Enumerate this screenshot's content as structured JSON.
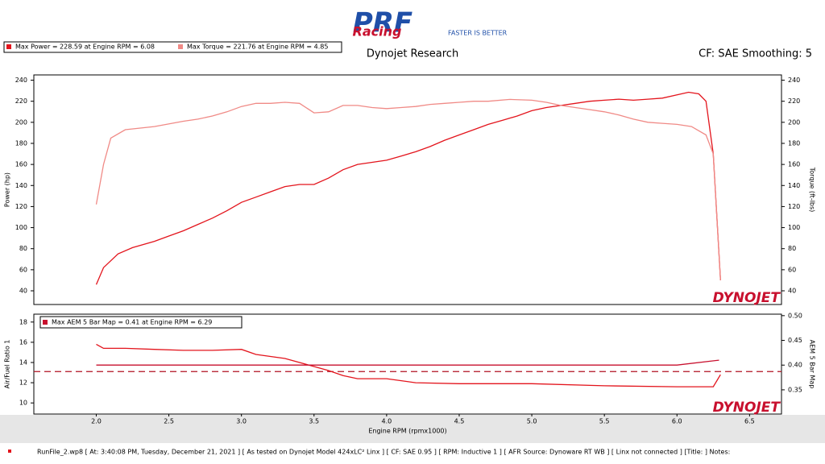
{
  "header": {
    "logo": "PRF",
    "logo_script": "Racing",
    "tagline": "FASTER IS BETTER",
    "title": "Dynojet Research",
    "settings": "CF: SAE Smoothing: 5"
  },
  "watermark": "DYNOJET",
  "footer": "RunFile_2.wp8  [ At: 3:40:08 PM, Tuesday, December 21, 2021 ]  [ As tested on Dynojet Model 424xLC² Linx ]  [ CF: SAE 0.95 ]  [ RPM: Inductive 1 ]  [ AFR Source: Dynoware RT WB ]  [ Linx not connected ]  [Title: ]   Notes:",
  "chart_data": [
    {
      "type": "line",
      "ylabel": "Power (hp)",
      "y2label": "Torque (ft-lbs)",
      "xlim": [
        1.57,
        6.72
      ],
      "ylim": [
        27,
        245
      ],
      "yticks": [
        40,
        60,
        80,
        100,
        120,
        140,
        160,
        180,
        200,
        220,
        240
      ],
      "y2lim": [
        27,
        245
      ],
      "y2ticks": [
        40,
        60,
        80,
        100,
        120,
        140,
        160,
        180,
        200,
        220,
        240
      ],
      "series": [
        {
          "name": "Max Power = 228.59 at Engine RPM = 6.08",
          "color": "#e3141c",
          "axis": "y",
          "x": [
            2.0,
            2.05,
            2.15,
            2.25,
            2.4,
            2.5,
            2.6,
            2.7,
            2.8,
            2.9,
            3.0,
            3.1,
            3.2,
            3.3,
            3.4,
            3.5,
            3.6,
            3.7,
            3.8,
            3.9,
            4.0,
            4.1,
            4.2,
            4.3,
            4.4,
            4.5,
            4.6,
            4.7,
            4.8,
            4.9,
            5.0,
            5.1,
            5.2,
            5.3,
            5.4,
            5.5,
            5.6,
            5.7,
            5.8,
            5.9,
            6.0,
            6.08,
            6.15,
            6.2,
            6.25,
            6.3
          ],
          "values": [
            46,
            62,
            75,
            81,
            87,
            92,
            97,
            103,
            109,
            116,
            124,
            129,
            134,
            139,
            141,
            141,
            147,
            155,
            160,
            162,
            164,
            168,
            172,
            177,
            183,
            188,
            193,
            198,
            202,
            206,
            211,
            214,
            216,
            218,
            220,
            221,
            222,
            221,
            222,
            223,
            226,
            228.59,
            227,
            220,
            170,
            50
          ]
        },
        {
          "name": "Max Torque = 221.76 at Engine RPM = 4.85",
          "color": "#f08a86",
          "axis": "y2",
          "x": [
            2.0,
            2.05,
            2.1,
            2.2,
            2.4,
            2.6,
            2.7,
            2.8,
            2.9,
            3.0,
            3.1,
            3.2,
            3.3,
            3.4,
            3.5,
            3.6,
            3.7,
            3.8,
            3.9,
            4.0,
            4.1,
            4.2,
            4.3,
            4.4,
            4.5,
            4.6,
            4.7,
            4.85,
            5.0,
            5.1,
            5.2,
            5.3,
            5.4,
            5.5,
            5.6,
            5.7,
            5.8,
            5.9,
            6.0,
            6.1,
            6.2,
            6.25,
            6.3
          ],
          "values": [
            122,
            160,
            185,
            193,
            196,
            201,
            203,
            206,
            210,
            215,
            218,
            218,
            219,
            218,
            209,
            210,
            216,
            216,
            214,
            213,
            214,
            215,
            217,
            218,
            219,
            220,
            220,
            221.76,
            221,
            219,
            216,
            214,
            212,
            210,
            207,
            203,
            200,
            199,
            198,
            196,
            188,
            170,
            50
          ]
        }
      ]
    },
    {
      "type": "line",
      "xlabel": "Engine RPM (rpmx1000)",
      "ylabel": "Air/Fuel Ratio 1",
      "y2label": "AEM 5 Bar Map",
      "xlim": [
        1.57,
        6.72
      ],
      "xticks": [
        {
          "value": 2,
          "label": "2.0"
        },
        2.5,
        {
          "value": 3,
          "label": "3.0"
        },
        3.5,
        {
          "value": 4,
          "label": "4.0"
        },
        4.5,
        {
          "value": 5,
          "label": "5.0"
        },
        5.5,
        {
          "value": 6,
          "label": "6.0"
        },
        6.5
      ],
      "ylim": [
        8.9,
        18.78
      ],
      "yticks": [
        10,
        12,
        14,
        16,
        18
      ],
      "y2lim": [
        0.301,
        0.503
      ],
      "y2ticks": [
        0.35,
        {
          "value": 0.4,
          "label": "0.40"
        },
        0.45,
        {
          "value": 0.5,
          "label": "0.50"
        }
      ],
      "afr_reference": 13.1,
      "series": [
        {
          "name": "Air/Fuel Ratio 1",
          "color": "#e3141c",
          "axis": "y",
          "x": [
            2.0,
            2.05,
            2.2,
            2.4,
            2.6,
            2.8,
            3.0,
            3.1,
            3.3,
            3.5,
            3.6,
            3.7,
            3.8,
            4.0,
            4.2,
            4.5,
            5.0,
            5.5,
            6.0,
            6.25,
            6.3
          ],
          "values": [
            15.8,
            15.4,
            15.4,
            15.3,
            15.2,
            15.2,
            15.3,
            14.8,
            14.4,
            13.6,
            13.2,
            12.7,
            12.4,
            12.4,
            12.0,
            11.9,
            11.9,
            11.7,
            11.6,
            11.6,
            12.8
          ]
        },
        {
          "name": "Max AEM 5 Bar Map = 0.41 at Engine RPM = 6.29",
          "color": "#c8102e",
          "axis": "y2",
          "x": [
            2.0,
            3.0,
            4.0,
            5.0,
            6.0,
            6.29
          ],
          "values": [
            0.4,
            0.4,
            0.4,
            0.4,
            0.4,
            0.41
          ]
        }
      ]
    }
  ]
}
